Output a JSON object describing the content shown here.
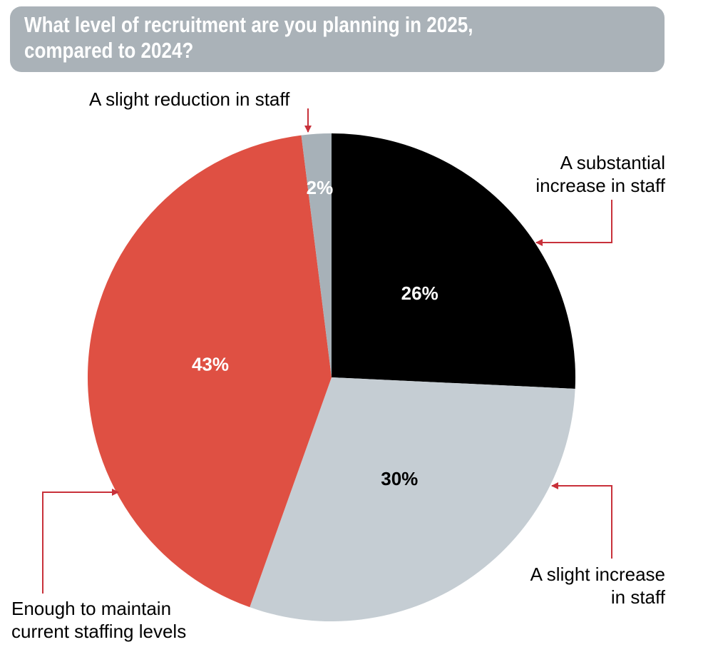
{
  "title_line1": "What level of recruitment are you planning in 2025,",
  "title_line2": "compared to 2024?",
  "labels": {
    "slight_reduction": "A slight reduction in staff",
    "substantial_line1": "A substantial",
    "substantial_line2": "increase in staff",
    "slight_increase_line1": "A slight increase",
    "slight_increase_line2": "in staff",
    "maintain_line1": "Enough to maintain",
    "maintain_line2": "current staffing levels"
  },
  "colors": {
    "title_bg": "#aab2b8",
    "arrow": "#c8313a"
  },
  "chart_data": {
    "type": "pie",
    "title": "What level of recruitment are you planning in 2025, compared to 2024?",
    "start_angle_deg": 0,
    "direction": "clockwise",
    "slices": [
      {
        "key": "substantial",
        "label": "A substantial increase in staff",
        "value": 26,
        "display": "26%",
        "color": "#000000",
        "text_color": "#ffffff"
      },
      {
        "key": "slight_increase",
        "label": "A slight increase in staff",
        "value": 30,
        "display": "30%",
        "color": "#c5cdd3",
        "text_color": "#000000"
      },
      {
        "key": "maintain",
        "label": "Enough to maintain current staffing levels",
        "value": 43,
        "display": "43%",
        "color": "#df5043",
        "text_color": "#ffffff"
      },
      {
        "key": "slight_reduction",
        "label": "A slight reduction in staff",
        "value": 2,
        "display": "2%",
        "color": "#a7b1b8",
        "text_color": "#ffffff"
      }
    ]
  }
}
